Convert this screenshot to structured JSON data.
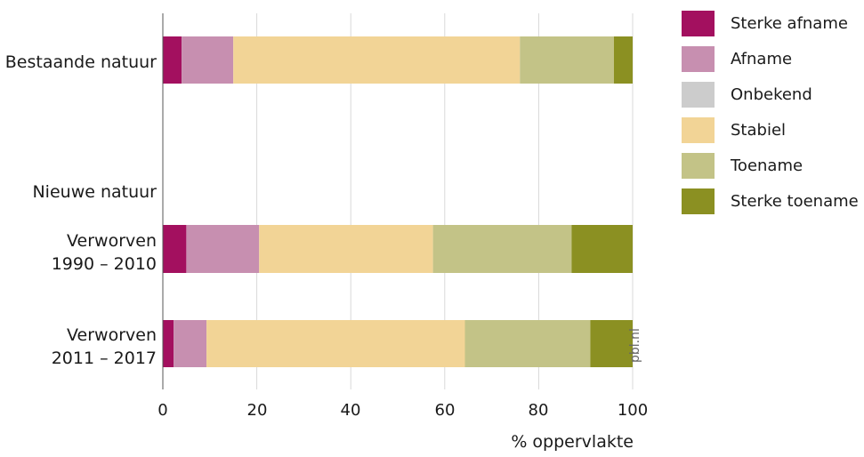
{
  "chart_data": {
    "type": "bar",
    "orientation": "horizontal",
    "stacked": true,
    "title": "",
    "xlabel": "% oppervlakte",
    "ylabel": "",
    "xlim": [
      0,
      100
    ],
    "xticks": [
      "0",
      "20",
      "40",
      "60",
      "80",
      "100"
    ],
    "grid": true,
    "legend_position": "right",
    "group_heading": "Nieuwe natuur",
    "categories": [
      {
        "lines": [
          "Bestaande natuur"
        ]
      },
      {
        "lines": [
          "Verworven",
          "1990 – 2010"
        ]
      },
      {
        "lines": [
          "Verworven",
          "2011 – 2017"
        ]
      }
    ],
    "series": [
      {
        "name": "Sterke afname",
        "color": "#a3105f",
        "values": [
          4,
          5,
          2.3
        ]
      },
      {
        "name": "Afname",
        "color": "#c78fb0",
        "values": [
          11,
          15.5,
          7
        ]
      },
      {
        "name": "Onbekend",
        "color": "#cccccc",
        "values": [
          0,
          0,
          0
        ]
      },
      {
        "name": "Stabiel",
        "color": "#f2d496",
        "values": [
          61,
          37,
          55
        ]
      },
      {
        "name": "Toename",
        "color": "#c3c387",
        "values": [
          20,
          29.5,
          26.7
        ]
      },
      {
        "name": "Sterke toename",
        "color": "#8b9022",
        "values": [
          4,
          13,
          9
        ]
      }
    ]
  },
  "watermark": "pbl.nl"
}
